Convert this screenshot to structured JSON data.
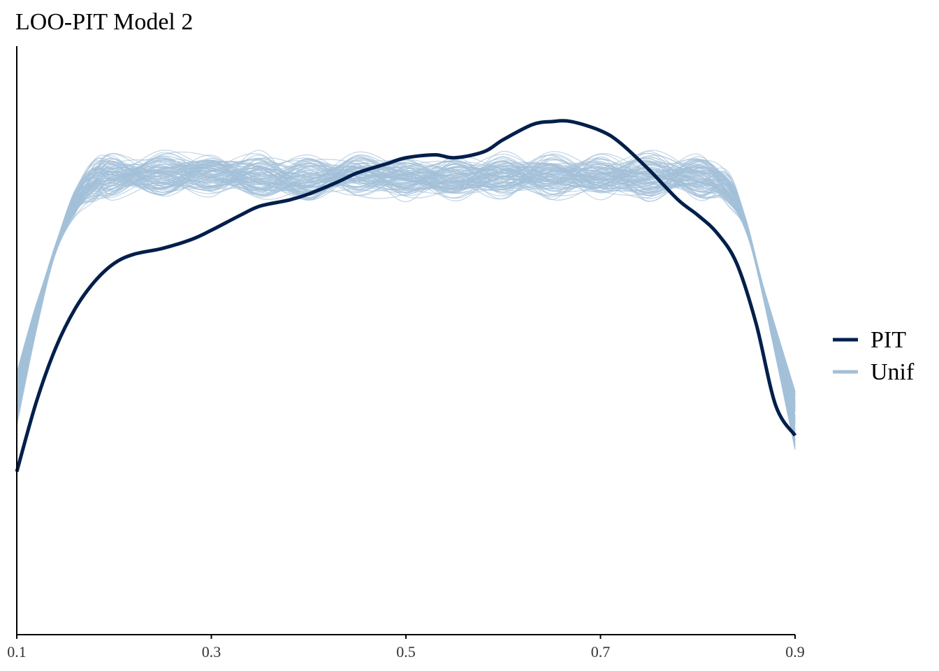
{
  "chart_data": {
    "type": "line",
    "title": "LOO-PIT Model 2",
    "xlabel": "",
    "ylabel": "",
    "xlim": [
      0.1,
      0.9
    ],
    "ylim": [
      0,
      1.95
    ],
    "x_ticks": [
      "0.1",
      "0.3",
      "0.5",
      "0.7",
      "0.9"
    ],
    "y_axis_ticks_shown": false,
    "grid": false,
    "legend_position": "right",
    "legend": [
      {
        "name": "PIT",
        "color": "#011f4b"
      },
      {
        "name": "Unif",
        "color": "#a3c0d8"
      }
    ],
    "series": [
      {
        "name": "PIT",
        "color": "#011f4b",
        "x": [
          0.1,
          0.12,
          0.14,
          0.16,
          0.18,
          0.2,
          0.22,
          0.25,
          0.28,
          0.3,
          0.33,
          0.35,
          0.38,
          0.4,
          0.43,
          0.45,
          0.48,
          0.5,
          0.53,
          0.55,
          0.58,
          0.6,
          0.63,
          0.65,
          0.67,
          0.7,
          0.72,
          0.75,
          0.78,
          0.8,
          0.82,
          0.84,
          0.86,
          0.88,
          0.9
        ],
        "values": [
          0.54,
          0.77,
          0.95,
          1.08,
          1.17,
          1.23,
          1.26,
          1.28,
          1.31,
          1.34,
          1.39,
          1.42,
          1.44,
          1.46,
          1.5,
          1.53,
          1.56,
          1.58,
          1.59,
          1.58,
          1.6,
          1.64,
          1.69,
          1.7,
          1.7,
          1.67,
          1.63,
          1.54,
          1.44,
          1.39,
          1.33,
          1.23,
          1.03,
          0.76,
          0.66
        ]
      },
      {
        "name": "Unif",
        "color": "#a3c0d8",
        "description_of_band": "many uniform-reference density draws",
        "x": [
          0.1,
          0.12,
          0.14,
          0.16,
          0.18,
          0.2,
          0.25,
          0.3,
          0.35,
          0.4,
          0.45,
          0.5,
          0.55,
          0.6,
          0.65,
          0.7,
          0.75,
          0.8,
          0.83,
          0.85,
          0.87,
          0.9
        ],
        "values": [
          0.78,
          1.05,
          1.28,
          1.43,
          1.5,
          1.52,
          1.53,
          1.52,
          1.52,
          1.51,
          1.52,
          1.52,
          1.51,
          1.52,
          1.52,
          1.52,
          1.52,
          1.51,
          1.48,
          1.35,
          1.1,
          0.71
        ]
      }
    ]
  }
}
